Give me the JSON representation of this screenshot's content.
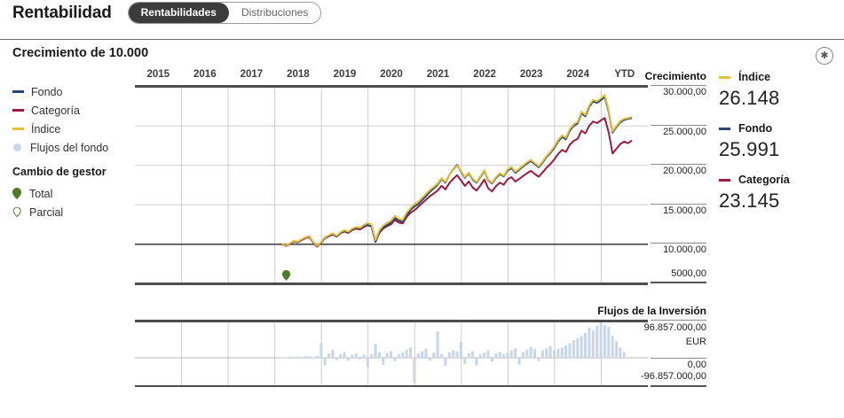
{
  "page": {
    "title": "Rentabilidad"
  },
  "tabs": [
    {
      "label": "Rentabilidades",
      "active": true
    },
    {
      "label": "Distribuciones",
      "active": false
    }
  ],
  "section": {
    "title": "Crecimiento de 10.000",
    "corner_icon": "circled-asterisk-icon"
  },
  "colors": {
    "fondo": "#27477A",
    "categoria": "#9C1B40",
    "indice": "#E2C23D",
    "flows_bar": "#C9D6E8",
    "manager_pin": "#4E7C27",
    "tab_active_bg": "#3C3C3C",
    "chart_border": "#4D4D4D",
    "gridline": "#CFCFCF",
    "baseline_10000": "#111111"
  },
  "legend": {
    "items": [
      {
        "label": "Fondo",
        "color": "#27477A",
        "swatch": "line"
      },
      {
        "label": "Categoría",
        "color": "#9C1B40",
        "swatch": "line"
      },
      {
        "label": "Índice",
        "color": "#E2C23D",
        "swatch": "line"
      },
      {
        "label": "Flujos del fondo",
        "color": "#C9D6E8",
        "swatch": "dot"
      }
    ]
  },
  "manager_change": {
    "title": "Cambio de gestor",
    "color": "#4E7C27",
    "items": [
      {
        "label": "Total",
        "style": "filled"
      },
      {
        "label": "Parcial",
        "style": "outline"
      }
    ]
  },
  "growth_axis": {
    "header": "Crecimiento",
    "ticks": [
      {
        "label": "30.000,00",
        "value": 30000
      },
      {
        "label": "25.000,00",
        "value": 25000
      },
      {
        "label": "20.000,00",
        "value": 20000
      },
      {
        "label": "15.000,00",
        "value": 15000
      },
      {
        "label": "10.000,00",
        "value": 10000
      },
      {
        "label": "5000,00",
        "value": 5000
      }
    ]
  },
  "summary": [
    {
      "label": "Índice",
      "value": "26.148",
      "color": "#E2C23D"
    },
    {
      "label": "Fondo",
      "value": "25.991",
      "color": "#27477A"
    },
    {
      "label": "Categoría",
      "value": "23.145",
      "color": "#9C1B40"
    }
  ],
  "flows_panel": {
    "title": "Flujos de la Inversión",
    "labels": [
      {
        "label": "96.857.000,00",
        "slot": "max"
      },
      {
        "label": "EUR",
        "slot": "unit"
      },
      {
        "label": "0,00",
        "slot": "zero"
      },
      {
        "label": "-96.857.000,00",
        "slot": "min"
      }
    ]
  },
  "chart_data": [
    {
      "type": "line",
      "title": "Crecimiento de 10.000",
      "x_labels": [
        "2015",
        "2016",
        "2017",
        "2018",
        "2019",
        "2020",
        "2021",
        "2022",
        "2023",
        "2024",
        "YTD"
      ],
      "start_month": "2018-03",
      "points_per_year": 12,
      "ylim": [
        5000,
        30000
      ],
      "yticks": [
        5000,
        10000,
        15000,
        20000,
        25000,
        30000
      ],
      "baseline": 10000,
      "grid": true,
      "legend_position": "left",
      "manager_change_marker": {
        "type": "total",
        "month_index": 1
      },
      "series": [
        {
          "name": "Categoría",
          "color": "#9C1B40",
          "end_label": "23.145",
          "values": [
            10000,
            9800,
            10080,
            10360,
            10260,
            10540,
            10780,
            10930,
            10200,
            9700,
            10200,
            10780,
            11020,
            11250,
            10960,
            11400,
            11630,
            11430,
            11800,
            11980,
            11880,
            12200,
            12430,
            12230,
            10350,
            11450,
            12000,
            12300,
            12550,
            13100,
            12750,
            12650,
            13450,
            14000,
            14300,
            14750,
            15200,
            15650,
            16100,
            16450,
            16800,
            17400,
            16950,
            17750,
            18300,
            18750,
            18100,
            17400,
            17950,
            17200,
            16800,
            17450,
            18200,
            17100,
            16700,
            17350,
            17800,
            17550,
            18250,
            18500,
            17950,
            18300,
            18650,
            19000,
            19300,
            18900,
            18550,
            19100,
            19700,
            20150,
            20750,
            21450,
            21950,
            21700,
            22600,
            23100,
            23350,
            24400,
            24050,
            25000,
            25550,
            25350,
            25700,
            26000,
            24200,
            21500,
            22100,
            22700,
            23000,
            22800,
            23145
          ]
        },
        {
          "name": "Fondo",
          "color": "#27477A",
          "end_label": "25.991",
          "values": [
            9970,
            9820,
            10120,
            10420,
            10320,
            10620,
            10870,
            11020,
            10270,
            9790,
            10220,
            10820,
            11070,
            11320,
            11020,
            11470,
            11720,
            11520,
            11920,
            12120,
            12020,
            12370,
            12450,
            12250,
            10300,
            11550,
            12150,
            12450,
            12750,
            13350,
            13000,
            12850,
            13750,
            14350,
            14800,
            15100,
            15600,
            16100,
            16650,
            17100,
            17550,
            18300,
            17800,
            18800,
            19460,
            20050,
            19200,
            18400,
            19000,
            18200,
            17800,
            18500,
            19300,
            18100,
            17700,
            18400,
            18900,
            18600,
            19350,
            19650,
            19050,
            19450,
            19850,
            20250,
            20550,
            20150,
            19750,
            20350,
            21050,
            21550,
            22200,
            23000,
            23600,
            23300,
            24400,
            25000,
            25300,
            26600,
            26200,
            27400,
            28100,
            27900,
            28250,
            28650,
            26800,
            24150,
            24850,
            25450,
            25750,
            25900,
            25991
          ]
        },
        {
          "name": "Índice",
          "color": "#E2C23D",
          "end_label": "26.148",
          "values": [
            10000,
            9850,
            10150,
            10450,
            10350,
            10650,
            10900,
            11050,
            10300,
            9820,
            10300,
            10900,
            11150,
            11400,
            11100,
            11550,
            11800,
            11600,
            12000,
            12200,
            12100,
            12450,
            12700,
            12500,
            10550,
            11800,
            12400,
            12700,
            13000,
            13600,
            13250,
            13100,
            14000,
            14600,
            15100,
            15400,
            15900,
            16400,
            16900,
            17300,
            17700,
            18400,
            17900,
            18800,
            19400,
            19950,
            19300,
            18500,
            19100,
            18300,
            17900,
            18600,
            19400,
            18200,
            17800,
            18500,
            19000,
            18700,
            19500,
            19800,
            19200,
            19600,
            20000,
            20400,
            20700,
            20300,
            19900,
            20500,
            21200,
            21700,
            22400,
            23200,
            23800,
            23500,
            24600,
            25200,
            25500,
            26800,
            26400,
            27600,
            28300,
            28100,
            28500,
            28900,
            27000,
            24300,
            25000,
            25600,
            25900,
            26000,
            26148
          ]
        }
      ]
    },
    {
      "type": "bar",
      "title": "Flujos de la Inversión",
      "unit": "EUR",
      "value_scale": "millions_eur",
      "ylim": [
        -96.857,
        96.857
      ],
      "start_month": "2018-03",
      "bar_color": "#C9D6E8",
      "values": [
        1.5,
        1,
        2.5,
        2,
        3.5,
        3,
        4.5,
        4,
        2,
        5,
        41,
        -26,
        12,
        22,
        -8,
        10,
        15,
        -10,
        8,
        12,
        -6,
        9,
        -33,
        10,
        38,
        15,
        -25,
        12,
        18,
        -12,
        10,
        15,
        22,
        28,
        -90,
        12,
        18,
        25,
        -10,
        15,
        72,
        10,
        -29,
        15,
        20,
        18,
        44,
        -22,
        12,
        18,
        -28,
        10,
        14,
        20,
        -14,
        12,
        16,
        10,
        14,
        20,
        26,
        -24,
        16,
        22,
        30,
        24,
        -12,
        20,
        26,
        32,
        20,
        24,
        28,
        34,
        40,
        48,
        54,
        60,
        68,
        83,
        75,
        88,
        96.857,
        90,
        85,
        60,
        45,
        28,
        15
      ]
    }
  ]
}
